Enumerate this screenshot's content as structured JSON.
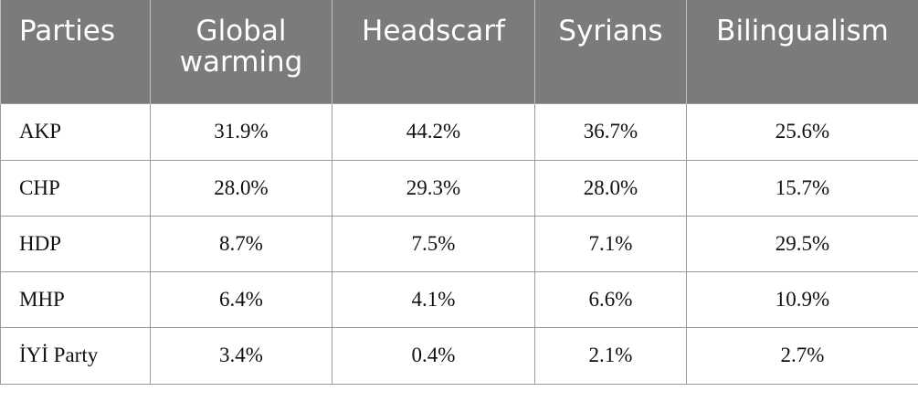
{
  "table": {
    "headers": [
      "Parties",
      "Global warming",
      "Headscarf",
      "Syrians",
      "Bilingualism"
    ],
    "rows": [
      [
        "AKP",
        "31.9%",
        "44.2%",
        "36.7%",
        "25.6%"
      ],
      [
        "CHP",
        "28.0%",
        "29.3%",
        "28.0%",
        "15.7%"
      ],
      [
        "HDP",
        "8.7%",
        "7.5%",
        "7.1%",
        "29.5%"
      ],
      [
        "MHP",
        "6.4%",
        "4.1%",
        "6.6%",
        "10.9%"
      ],
      [
        "İYİ Party",
        "3.4%",
        "0.4%",
        "2.1%",
        "2.7%"
      ]
    ]
  },
  "colors": {
    "header_background": "#7b7b7b",
    "header_text": "#ffffff",
    "grid_line": "#9a9a9a"
  }
}
